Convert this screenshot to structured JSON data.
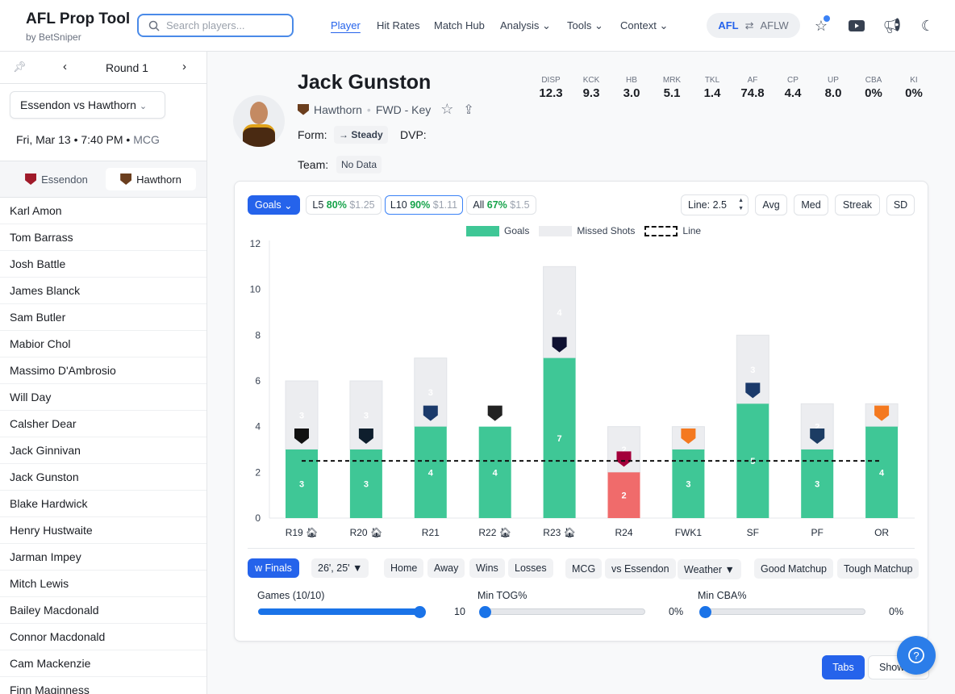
{
  "app": {
    "title": "AFL Prop Tool",
    "subtitle": "by BetSniper"
  },
  "search": {
    "placeholder": "Search players..."
  },
  "nav": [
    {
      "label": "Player"
    },
    {
      "label": "Hit Rates"
    },
    {
      "label": "Match Hub"
    },
    {
      "label": "Analysis"
    },
    {
      "label": "Tools"
    },
    {
      "label": "Context"
    }
  ],
  "league": {
    "active": "AFL",
    "other": "AFLW"
  },
  "sidebar": {
    "round": "Round 1",
    "match": "Essendon vs Hawthorn",
    "date": "Fri, Mar 13 • 7:40 PM •",
    "venue": "MCG",
    "teams": [
      {
        "label": "Essendon"
      },
      {
        "label": "Hawthorn"
      }
    ],
    "players": [
      "Karl Amon",
      "Tom Barrass",
      "Josh Battle",
      "James Blanck",
      "Sam Butler",
      "Mabior Chol",
      "Massimo D'Ambrosio",
      "Will Day",
      "Calsher Dear",
      "Jack Ginnivan",
      "Jack Gunston",
      "Blake Hardwick",
      "Henry Hustwaite",
      "Jarman Impey",
      "Mitch Lewis",
      "Bailey Macdonald",
      "Connor Macdonald",
      "Cam Mackenzie",
      "Finn Maginness"
    ]
  },
  "player": {
    "name": "Jack Gunston",
    "team": "Hawthorn",
    "position": "FWD - Key",
    "form_label": "Form:",
    "form_value": "→ Steady",
    "dvp_label": "DVP:",
    "team_label": "Team:",
    "team_value": "No Data",
    "stats": [
      {
        "l": "DISP",
        "v": "12.3"
      },
      {
        "l": "KCK",
        "v": "9.3"
      },
      {
        "l": "HB",
        "v": "3.0"
      },
      {
        "l": "MRK",
        "v": "5.1"
      },
      {
        "l": "TKL",
        "v": "1.4"
      },
      {
        "l": "AF",
        "v": "74.8"
      },
      {
        "l": "CP",
        "v": "4.4"
      },
      {
        "l": "UP",
        "v": "8.0"
      },
      {
        "l": "CBA",
        "v": "0%"
      },
      {
        "l": "KI",
        "v": "0%"
      }
    ]
  },
  "controls": {
    "stat": "Goals",
    "l5": {
      "k": "L5",
      "p": "80%",
      "o": "$1.25"
    },
    "l10": {
      "k": "L10",
      "p": "90%",
      "o": "$1.11"
    },
    "all": {
      "k": "All",
      "p": "67%",
      "o": "$1.5"
    },
    "line": "Line: 2.5",
    "avg": "Avg",
    "med": "Med",
    "streak": "Streak",
    "sd": "SD"
  },
  "chart_data": {
    "type": "bar",
    "categories": [
      "R19",
      "R20",
      "R21",
      "R22",
      "R23",
      "R24",
      "FWK1",
      "SF",
      "PF",
      "OR"
    ],
    "home": [
      true,
      true,
      false,
      true,
      true,
      false,
      false,
      false,
      false,
      false
    ],
    "opponents": [
      "Port Adelaide",
      "Carlton",
      "Adelaide",
      "Collingwood",
      "Melbourne",
      "Brisbane",
      "GWS",
      "Adelaide",
      "Geelong",
      "GWS"
    ],
    "series": [
      {
        "name": "Goals",
        "values": [
          3,
          3,
          4,
          4,
          7,
          2,
          3,
          5,
          3,
          4
        ]
      },
      {
        "name": "Missed Shots",
        "values": [
          3,
          3,
          3,
          0,
          4,
          2,
          1,
          3,
          2,
          1
        ]
      }
    ],
    "line": {
      "name": "Line",
      "value": 2.5
    },
    "ylim": [
      0,
      12
    ],
    "yticks": [
      0,
      2,
      4,
      6,
      8,
      10,
      12
    ],
    "colors": {
      "hit": "#3fc796",
      "miss": "#f06b6b",
      "missed": "#ecedf0"
    },
    "legend": [
      "Goals",
      "Missed Shots",
      "Line"
    ],
    "legend_position": "top-center"
  },
  "filters": {
    "finals": "w Finals",
    "seasons": "26', 25' ▼",
    "home": "Home",
    "away": "Away",
    "wins": "Wins",
    "losses": "Losses",
    "venue": "MCG",
    "vs": "vs Essendon",
    "weather": "Weather ▼",
    "good": "Good Matchup",
    "tough": "Tough Matchup",
    "games_label": "Games (10/10)",
    "games_value": "10",
    "games_fraction": 1.0,
    "tog_label": "Min TOG%",
    "tog_value": "0%",
    "cba_label": "Min CBA%",
    "cba_value": "0%"
  },
  "footer": {
    "tabs": "Tabs",
    "show": "Show"
  }
}
